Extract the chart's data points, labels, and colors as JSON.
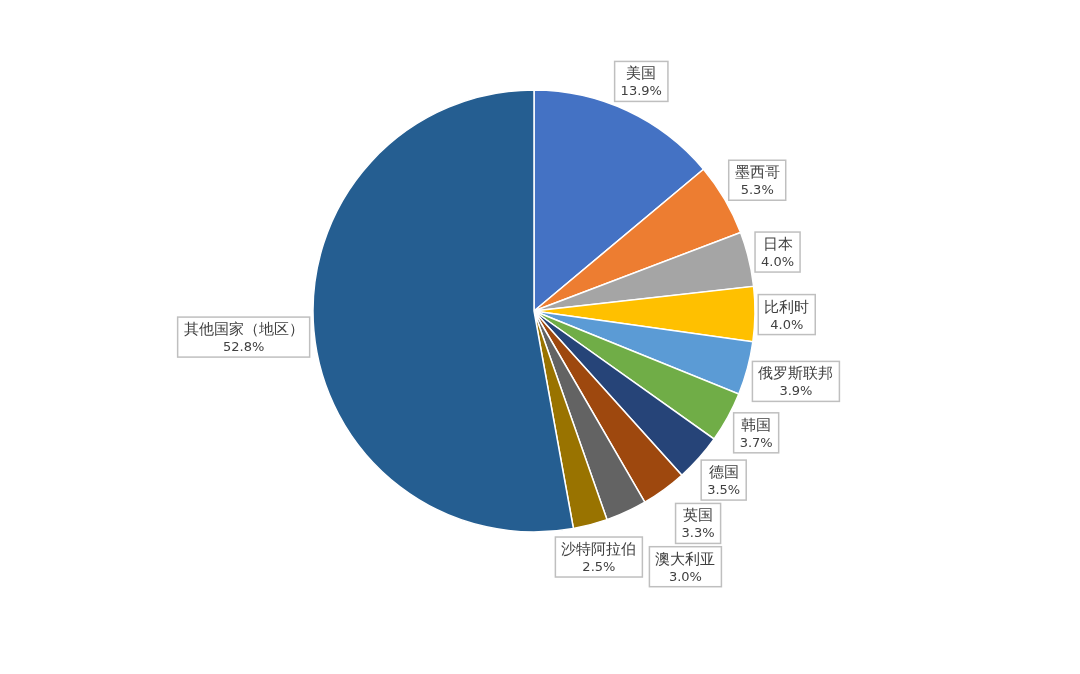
{
  "chart_data": {
    "type": "pie",
    "categories": [
      "美国",
      "墨西哥",
      "日本",
      "比利时",
      "俄罗斯联邦",
      "韩国",
      "德国",
      "英国",
      "澳大利亚",
      "沙特阿拉伯",
      "其他国家（地区）"
    ],
    "values": [
      13.9,
      5.3,
      4.0,
      4.0,
      3.9,
      3.7,
      3.5,
      3.3,
      3.0,
      2.5,
      52.8
    ],
    "colors": [
      "#4472c4",
      "#ed7d31",
      "#a5a5a5",
      "#ffc000",
      "#5b9bd5",
      "#70ad47",
      "#264478",
      "#9e480e",
      "#636363",
      "#997300",
      "#255e91"
    ],
    "value_labels": [
      "13.9%",
      "5.3%",
      "4.0%",
      "4.0%",
      "3.9%",
      "3.7%",
      "3.5%",
      "3.3%",
      "3.0%",
      "2.5%",
      "52.8%"
    ]
  }
}
